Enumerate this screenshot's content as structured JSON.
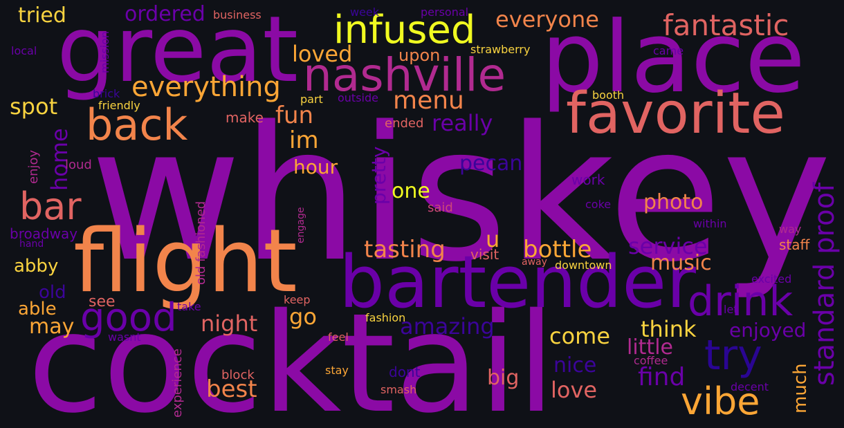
{
  "palette": {
    "background": "#0f1117",
    "purple": "#8b0aa5",
    "violet": "#6a00a8",
    "indigo": "#3b049a",
    "deep_indigo": "#2a0593",
    "magenta": "#b12a90",
    "pink": "#cc4778",
    "coral": "#e16462",
    "salmon": "#f2844b",
    "orange": "#fca636",
    "yellow": "#f0f921",
    "gold": "#f9d340"
  },
  "words": [
    {
      "text": "whiskey",
      "color": "purple"
    },
    {
      "text": "cocktail",
      "color": "purple"
    },
    {
      "text": "place",
      "color": "purple"
    },
    {
      "text": "great",
      "color": "purple"
    },
    {
      "text": "flight",
      "color": "salmon"
    },
    {
      "text": "bartender",
      "color": "violet"
    },
    {
      "text": "favorite",
      "color": "coral"
    },
    {
      "text": "nashville",
      "color": "magenta"
    },
    {
      "text": "infused",
      "color": "yellow"
    },
    {
      "text": "drink",
      "color": "violet"
    },
    {
      "text": "back",
      "color": "salmon"
    },
    {
      "text": "bar",
      "color": "coral"
    },
    {
      "text": "good",
      "color": "violet"
    },
    {
      "text": "try",
      "color": "deep_indigo"
    },
    {
      "text": "vibe",
      "color": "orange"
    },
    {
      "text": "fantastic",
      "color": "coral"
    },
    {
      "text": "everything",
      "color": "orange"
    },
    {
      "text": "standard proof",
      "color": "violet"
    },
    {
      "text": "everyone",
      "color": "salmon"
    },
    {
      "text": "menu",
      "color": "salmon"
    },
    {
      "text": "ordered",
      "color": "violet"
    },
    {
      "text": "tried",
      "color": "gold"
    },
    {
      "text": "loved",
      "color": "orange"
    },
    {
      "text": "home",
      "color": "violet"
    },
    {
      "text": "spot",
      "color": "gold"
    },
    {
      "text": "fun",
      "color": "salmon"
    },
    {
      "text": "im",
      "color": "orange"
    },
    {
      "text": "really",
      "color": "violet"
    },
    {
      "text": "bottle",
      "color": "orange"
    },
    {
      "text": "service",
      "color": "violet"
    },
    {
      "text": "tasting",
      "color": "salmon"
    },
    {
      "text": "one",
      "color": "yellow"
    },
    {
      "text": "u",
      "color": "orange"
    },
    {
      "text": "pretty",
      "color": "violet"
    },
    {
      "text": "pecan",
      "color": "indigo"
    },
    {
      "text": "hour",
      "color": "orange"
    },
    {
      "text": "photo",
      "color": "salmon"
    },
    {
      "text": "music",
      "color": "salmon"
    },
    {
      "text": "night",
      "color": "coral"
    },
    {
      "text": "go",
      "color": "orange"
    },
    {
      "text": "amazing",
      "color": "indigo"
    },
    {
      "text": "think",
      "color": "gold"
    },
    {
      "text": "come",
      "color": "gold"
    },
    {
      "text": "enjoyed",
      "color": "violet"
    },
    {
      "text": "little",
      "color": "magenta"
    },
    {
      "text": "find",
      "color": "violet"
    },
    {
      "text": "nice",
      "color": "indigo"
    },
    {
      "text": "big",
      "color": "coral"
    },
    {
      "text": "love",
      "color": "coral"
    },
    {
      "text": "best",
      "color": "salmon"
    },
    {
      "text": "much",
      "color": "orange"
    },
    {
      "text": "may",
      "color": "orange"
    },
    {
      "text": "able",
      "color": "orange"
    },
    {
      "text": "see",
      "color": "coral"
    },
    {
      "text": "abby",
      "color": "gold"
    },
    {
      "text": "old",
      "color": "indigo"
    },
    {
      "text": "broadway",
      "color": "violet"
    },
    {
      "text": "strawberry",
      "color": "gold"
    },
    {
      "text": "upon",
      "color": "salmon"
    },
    {
      "text": "friendly",
      "color": "gold"
    },
    {
      "text": "business",
      "color": "coral"
    },
    {
      "text": "personal",
      "color": "violet"
    },
    {
      "text": "week",
      "color": "indigo"
    },
    {
      "text": "mission",
      "color": "violet"
    },
    {
      "text": "local",
      "color": "violet"
    },
    {
      "text": "brick",
      "color": "indigo"
    },
    {
      "text": "part",
      "color": "gold"
    },
    {
      "text": "outside",
      "color": "violet"
    },
    {
      "text": "make",
      "color": "coral"
    },
    {
      "text": "ended",
      "color": "coral"
    },
    {
      "text": "came",
      "color": "violet"
    },
    {
      "text": "booth",
      "color": "gold"
    },
    {
      "text": "enjoy",
      "color": "magenta"
    },
    {
      "text": "loud",
      "color": "magenta"
    },
    {
      "text": "old fashioned",
      "color": "magenta"
    },
    {
      "text": "engage",
      "color": "magenta"
    },
    {
      "text": "work",
      "color": "violet"
    },
    {
      "text": "coke",
      "color": "violet"
    },
    {
      "text": "said",
      "color": "pink"
    },
    {
      "text": "within",
      "color": "violet"
    },
    {
      "text": "way",
      "color": "magenta"
    },
    {
      "text": "staff",
      "color": "salmon"
    },
    {
      "text": "visit",
      "color": "coral"
    },
    {
      "text": "away",
      "color": "coral"
    },
    {
      "text": "downtown",
      "color": "gold"
    },
    {
      "text": "excited",
      "color": "violet"
    },
    {
      "text": "hand",
      "color": "violet"
    },
    {
      "text": "keep",
      "color": "coral"
    },
    {
      "text": "take",
      "color": "violet"
    },
    {
      "text": "let",
      "color": "violet"
    },
    {
      "text": "fashion",
      "color": "gold"
    },
    {
      "text": "wasnt",
      "color": "violet"
    },
    {
      "text": "feel",
      "color": "coral"
    },
    {
      "text": "experience",
      "color": "magenta"
    },
    {
      "text": "coffee",
      "color": "magenta"
    },
    {
      "text": "block",
      "color": "coral"
    },
    {
      "text": "stay",
      "color": "orange"
    },
    {
      "text": "dont",
      "color": "indigo"
    },
    {
      "text": "smash",
      "color": "coral"
    },
    {
      "text": "decent",
      "color": "violet"
    }
  ]
}
